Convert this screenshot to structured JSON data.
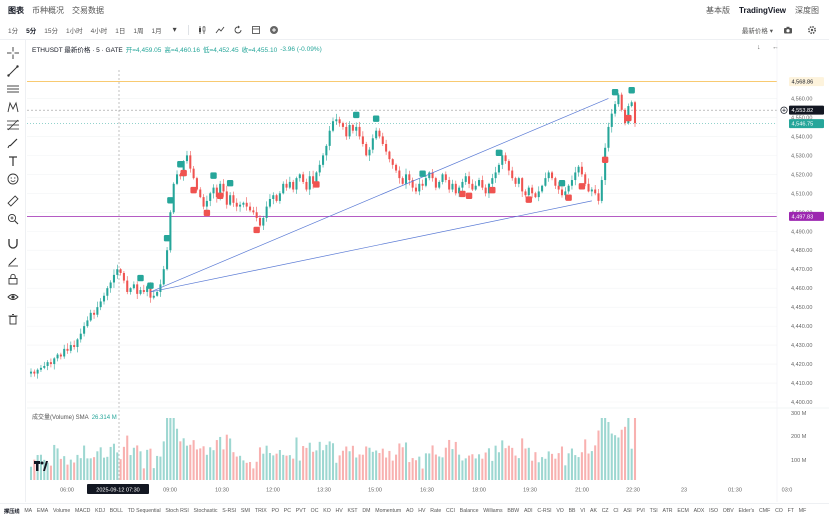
{
  "topnav": {
    "tabs": [
      "图表",
      "币种概况",
      "交易数据"
    ],
    "active_tab": 0,
    "right_tabs": [
      "基本版",
      "TradingView",
      "深度图"
    ],
    "active_right": 1
  },
  "toolbar": {
    "timeframes": [
      "1分",
      "5分",
      "15分",
      "1小时",
      "4小时",
      "1日",
      "1周",
      "1月"
    ],
    "active_timeframe": 1,
    "price_type": "最新价格"
  },
  "legend": {
    "symbol": "ETHUSDT 最新价格 · 5 · GATE",
    "open": "开=4,459.05",
    "high": "高=4,460.16",
    "low": "低=4,452.45",
    "close": "收=4,455.10",
    "change": "-3.96 (-0.09%)"
  },
  "volume_legend": {
    "label": "成交量(Volume) SMA",
    "value": "26.314 M"
  },
  "price_labels": {
    "orange": "4,568.86",
    "current": "4,553.82",
    "green": "4,546.75",
    "purple": "4,497.83"
  },
  "colors": {
    "up": "#26a69a",
    "down": "#ef5350",
    "orange_line": "#f5b942",
    "purple_line": "#9c27b0",
    "trend_line": "#5b7bd5"
  },
  "chart_data": {
    "type": "candlestick",
    "y_ticks": [
      4560,
      4550,
      4540,
      4530,
      4520,
      4510,
      4500,
      4490,
      4480,
      4470,
      4460,
      4450,
      4440,
      4430,
      4420,
      4410,
      4400
    ],
    "y_tick_labels": [
      "4,560.00",
      "4,550.00",
      "4,540.00",
      "4,530.00",
      "4,520.00",
      "4,510.00",
      "4,500.00",
      "4,490.00",
      "4,480.00",
      "4,470.00",
      "4,460.00",
      "4,450.00",
      "4,440.00",
      "4,430.00",
      "4,420.00",
      "4,410.00",
      "4,400.00"
    ],
    "x_tick_labels": [
      "06:00",
      "2025-09-12   07:30",
      "09:00",
      "10:30",
      "12:00",
      "13:30",
      "15:00",
      "16:30",
      "18:00",
      "19:30",
      "21:00",
      "22:30",
      "23",
      "01:30",
      "03:0"
    ],
    "vol_ticks": [
      "300 M",
      "200 M",
      "100 M"
    ],
    "ylim": [
      4400,
      4575
    ],
    "horizontal_lines": [
      4568.86,
      4553.82,
      4546.75,
      4497.83
    ],
    "closes": [
      4416,
      4415,
      4417,
      4418,
      4419,
      4421,
      4420,
      4423,
      4425,
      4424,
      4428,
      4427,
      4430,
      4429,
      4433,
      4436,
      4440,
      4443,
      4447,
      4446,
      4450,
      4453,
      4456,
      4460,
      4463,
      4467,
      4470,
      4468,
      4464,
      4458,
      4460,
      4462,
      4457,
      4459,
      4458,
      4461,
      4455,
      4456,
      4458,
      4462,
      4470,
      4480,
      4500,
      4515,
      4520,
      4519,
      4527,
      4530,
      4523,
      4518,
      4512,
      4508,
      4503,
      4506,
      4510,
      4513,
      4508,
      4515,
      4511,
      4504,
      4509,
      4505,
      4503,
      4504,
      4505,
      4503,
      4501,
      4500,
      4497,
      4493,
      4497,
      4503,
      4507,
      4509,
      4506,
      4510,
      4515,
      4513,
      4516,
      4512,
      4518,
      4520,
      4516,
      4512,
      4519,
      4515,
      4521,
      4525,
      4530,
      4535,
      4543,
      4548,
      4549,
      4547,
      4545,
      4540,
      4546,
      4543,
      4545,
      4540,
      4536,
      4530,
      4533,
      4539,
      4543,
      4540,
      4536,
      4532,
      4528,
      4525,
      4522,
      4518,
      4515,
      4520,
      4517,
      4513,
      4511,
      4515,
      4514,
      4518,
      4521,
      4518,
      4513,
      4516,
      4520,
      4517,
      4512,
      4515,
      4510,
      4513,
      4516,
      4519,
      4515,
      4512,
      4514,
      4517,
      4513,
      4510,
      4515,
      4518,
      4521,
      4525,
      4530,
      4527,
      4522,
      4518,
      4515,
      4518,
      4511,
      4509,
      4513,
      4510,
      4508,
      4511,
      4514,
      4518,
      4521,
      4518,
      4514,
      4512,
      4509,
      4511,
      4514,
      4517,
      4521,
      4524,
      4520,
      4515,
      4511,
      4512,
      4510,
      4506,
      4517,
      4534,
      4545,
      4552,
      4557,
      4562,
      4554,
      4547,
      4556,
      4558,
      4547
    ]
  }
}
